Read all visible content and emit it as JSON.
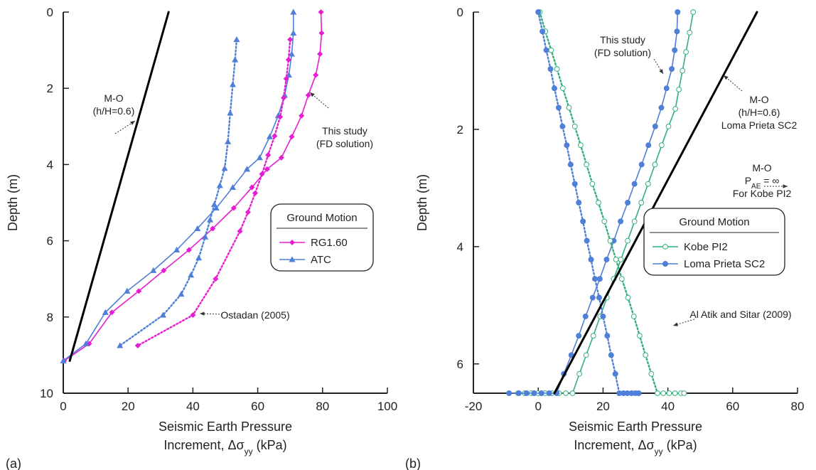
{
  "chart_data": [
    {
      "type": "line",
      "panel_label": "(a)",
      "xlabel": "Seismic Earth Pressure",
      "xlabel2_prefix": "Increment, Δσ",
      "xlabel2_sub": "yy",
      "xlabel2_suffix": " (kPa)",
      "ylabel": "Depth (m)",
      "xlim": [
        0,
        100
      ],
      "ylim": [
        10,
        0
      ],
      "y_inverted": true,
      "grid": false,
      "xticks": [
        0,
        20,
        40,
        60,
        80,
        100
      ],
      "yticks": [
        0,
        2,
        4,
        6,
        8,
        10
      ],
      "legend": {
        "title": "Ground Motion",
        "position": "center-right",
        "entries": [
          "RG1.60",
          "ATC"
        ]
      },
      "series": [
        {
          "name": "RG1.60",
          "role": "This study (FD solution)",
          "color": "#e61ed2",
          "marker": "diamond",
          "dash": "solid",
          "x": [
            79.5,
            79.7,
            79.2,
            77.9,
            75.6,
            73.5,
            70.5,
            67.3,
            62.9,
            58.2,
            52.6,
            46.1,
            38.8,
            31.0,
            23.3,
            15.0,
            8.0,
            0.3
          ],
          "y": [
            0.0,
            0.55,
            1.1,
            1.65,
            2.18,
            2.72,
            3.27,
            3.82,
            4.12,
            4.6,
            5.14,
            5.68,
            6.24,
            6.78,
            7.32,
            7.88,
            8.7,
            9.15
          ]
        },
        {
          "name": "ATC",
          "role": "This study (FD solution)",
          "color": "#4f7fd6",
          "marker": "triangle",
          "dash": "solid",
          "x": [
            71.0,
            71.0,
            70.5,
            69.6,
            68.3,
            66.3,
            63.7,
            60.6,
            56.7,
            52.3,
            47.2,
            41.4,
            35.0,
            27.8,
            19.7,
            13.0,
            7.0,
            0.0
          ],
          "y": [
            0.0,
            0.55,
            1.1,
            1.65,
            2.18,
            2.72,
            3.27,
            3.82,
            4.12,
            4.6,
            5.14,
            5.68,
            6.24,
            6.78,
            7.32,
            7.88,
            8.7,
            9.15
          ]
        },
        {
          "name": "RG1.60",
          "role": "Ostadan (2005)",
          "color": "#e61ed2",
          "marker": "diamond",
          "dash": "dotted",
          "x": [
            70.0,
            69.5,
            68.8,
            68.0,
            66.9,
            65.2,
            63.2,
            61.3,
            59.2,
            57.0,
            54.5,
            47.0,
            40.0,
            23.0
          ],
          "y": [
            0.72,
            1.25,
            1.75,
            2.25,
            2.75,
            3.25,
            3.75,
            4.25,
            4.75,
            5.25,
            5.75,
            7.0,
            7.95,
            8.75
          ]
        },
        {
          "name": "ATC",
          "role": "Ostadan (2005)",
          "color": "#4f7fd6",
          "marker": "triangle",
          "dash": "dotted",
          "x": [
            53.5,
            53.0,
            52.3,
            51.5,
            50.8,
            49.8,
            48.3,
            46.6,
            45.3,
            43.8,
            41.8,
            39.4,
            36.4,
            30.8,
            17.5
          ],
          "y": [
            0.72,
            1.25,
            1.9,
            2.65,
            3.4,
            4.1,
            4.55,
            5.05,
            5.45,
            5.9,
            6.45,
            6.9,
            7.4,
            7.95,
            8.75
          ]
        },
        {
          "name": "M-O (h/H=0.6)",
          "role": "M-O",
          "color": "#000000",
          "marker": "none",
          "dash": "solid",
          "x": [
            32.5,
            2.0
          ],
          "y": [
            0.0,
            9.15
          ]
        }
      ],
      "annotations": [
        {
          "lines": [
            "M-O",
            "(h/H=0.6)"
          ]
        },
        {
          "lines": [
            "This study",
            "(FD solution)"
          ]
        },
        {
          "lines": [
            "Ostadan (2005)"
          ]
        }
      ]
    },
    {
      "type": "line",
      "panel_label": "(b)",
      "xlabel": "Seismic Earth Pressure",
      "xlabel2_prefix": "Increment, Δσ",
      "xlabel2_sub": "yy",
      "xlabel2_suffix": " (kPa)",
      "ylabel": "Depth (m)",
      "xlim": [
        -20,
        80
      ],
      "ylim": [
        6.5,
        0
      ],
      "y_inverted": true,
      "grid": false,
      "xticks": [
        -20,
        0,
        20,
        40,
        60,
        80
      ],
      "yticks": [
        0,
        2,
        4,
        6
      ],
      "legend": {
        "title": "Ground Motion",
        "position": "lower-right",
        "entries": [
          "Kobe PI2",
          "Loma Prieta SC2"
        ]
      },
      "series": [
        {
          "name": "Kobe PI2",
          "role": "This study (FD solution)",
          "color": "#33b07a",
          "marker": "circle-open",
          "dash": "solid",
          "x": [
            47.8,
            46.7,
            45.6,
            44.5,
            43.4,
            42.3,
            40.2,
            38.1,
            36.0,
            33.9,
            31.8,
            29.7,
            27.6,
            25.5,
            23.3,
            21.2,
            19.1,
            17.0,
            14.8,
            12.7,
            10.6,
            8.5,
            6.4,
            4.2,
            2.1,
            0.0,
            -2.1,
            -4.2,
            -6.2
          ],
          "y": [
            0.0,
            0.35,
            0.68,
            1.0,
            1.32,
            1.65,
            1.95,
            2.27,
            2.6,
            2.93,
            3.25,
            3.57,
            3.9,
            4.22,
            4.55,
            4.87,
            5.19,
            5.52,
            5.85,
            6.17,
            6.5,
            6.5,
            6.5,
            6.5,
            6.5,
            6.5,
            6.5,
            6.5,
            6.5
          ]
        },
        {
          "name": "Loma Prieta SC2",
          "role": "This study (FD solution)",
          "color": "#4f7fd6",
          "marker": "circle",
          "dash": "solid",
          "x": [
            43.0,
            42.8,
            42.1,
            41.2,
            39.6,
            38.0,
            36.1,
            34.0,
            31.9,
            29.7,
            27.6,
            25.4,
            23.3,
            21.1,
            19.0,
            16.8,
            14.6,
            12.5,
            10.2,
            7.9,
            5.7,
            3.4,
            1.0,
            -1.3,
            -3.6,
            -6.0,
            -9.0
          ],
          "y": [
            0.0,
            0.33,
            0.65,
            0.97,
            1.3,
            1.63,
            1.95,
            2.27,
            2.6,
            2.93,
            3.25,
            3.57,
            3.9,
            4.22,
            4.55,
            4.87,
            5.19,
            5.52,
            5.85,
            6.17,
            6.5,
            6.5,
            6.5,
            6.5,
            6.5,
            6.5,
            6.5
          ]
        },
        {
          "name": "Kobe PI2",
          "role": "Al Atik and Sitar (2009)",
          "color": "#33b07a",
          "marker": "circle-open",
          "dash": "dotted",
          "x": [
            0.5,
            2.2,
            4.0,
            5.8,
            7.6,
            9.5,
            11.3,
            13.1,
            14.9,
            16.7,
            18.6,
            20.4,
            22.2,
            24.0,
            25.8,
            27.7,
            29.5,
            31.3,
            33.1,
            34.9,
            36.8,
            38.6,
            40.4,
            42.2,
            44.0,
            45.0
          ],
          "y": [
            0.0,
            0.33,
            0.65,
            0.97,
            1.3,
            1.63,
            1.95,
            2.27,
            2.6,
            2.93,
            3.25,
            3.57,
            3.9,
            4.22,
            4.55,
            4.87,
            5.19,
            5.52,
            5.85,
            6.17,
            6.5,
            6.5,
            6.5,
            6.5,
            6.5,
            6.5
          ]
        },
        {
          "name": "Loma Prieta SC2",
          "role": "Al Atik and Sitar (2009)",
          "color": "#4f7fd6",
          "marker": "circle",
          "dash": "dotted",
          "x": [
            0.0,
            1.3,
            2.5,
            3.8,
            5.0,
            6.3,
            7.5,
            8.8,
            10.0,
            11.3,
            12.5,
            13.8,
            15.0,
            16.3,
            17.5,
            18.8,
            20.0,
            21.3,
            22.5,
            23.8,
            25.0,
            26.3,
            27.5,
            28.8,
            30.0,
            31.0
          ],
          "y": [
            0.0,
            0.33,
            0.65,
            0.97,
            1.3,
            1.63,
            1.95,
            2.27,
            2.6,
            2.93,
            3.25,
            3.57,
            3.9,
            4.22,
            4.55,
            4.87,
            5.19,
            5.52,
            5.85,
            6.17,
            6.5,
            6.5,
            6.5,
            6.5,
            6.5,
            6.5
          ]
        },
        {
          "name": "M-O (h/H=0.6) Loma Prieta SC2",
          "role": "M-O",
          "color": "#000000",
          "marker": "none",
          "dash": "solid",
          "x": [
            67.5,
            5.0
          ],
          "y": [
            0.0,
            6.5
          ]
        }
      ],
      "annotations": [
        {
          "lines": [
            "This study",
            "(FD solution)"
          ]
        },
        {
          "lines": [
            "M-O",
            "(h/H=0.6)",
            "Loma Prieta SC2"
          ]
        },
        {
          "lines": [
            "M-O",
            "P_AE = ∞",
            "For Kobe PI2"
          ]
        },
        {
          "lines": [
            "Al Atik and Sitar (2009)"
          ]
        }
      ]
    }
  ]
}
